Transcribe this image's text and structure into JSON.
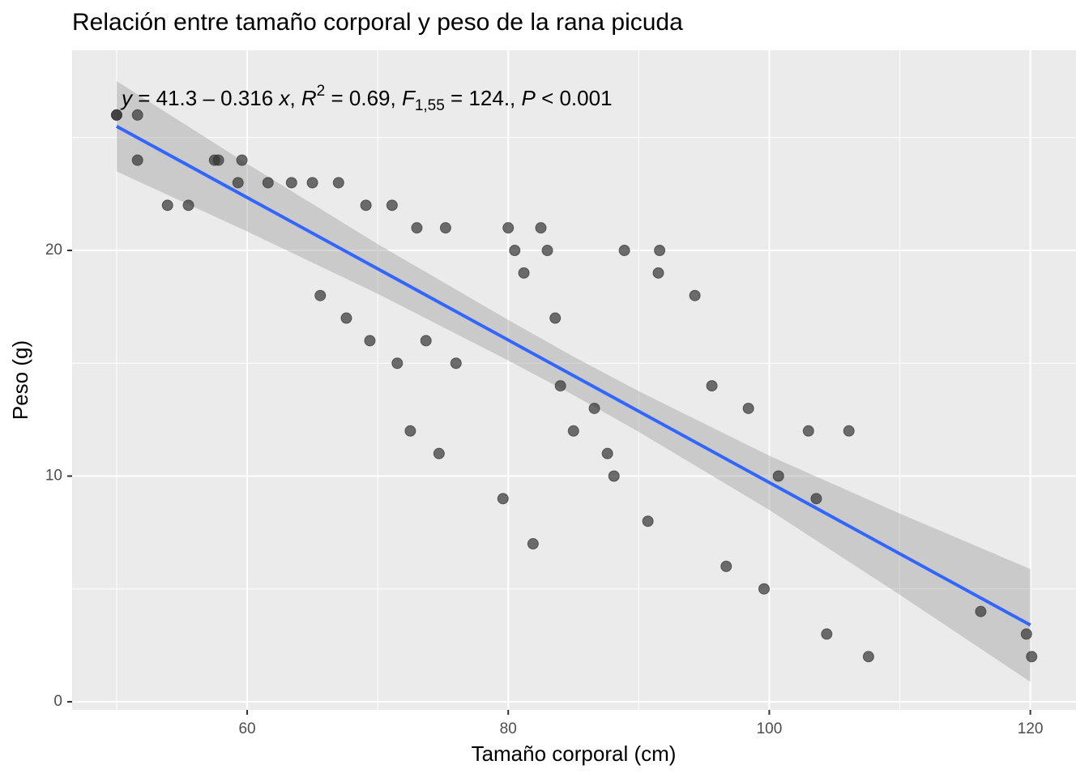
{
  "chart_data": {
    "type": "scatter",
    "title": "Relación entre tamaño corporal y peso de la rana picuda",
    "x_label": "Tamaño corporal (cm)",
    "y_label": "Peso (g)",
    "annotation": [
      "y",
      " = 41.3 – 0.316 ",
      "x",
      ", ",
      "R",
      "2",
      " = 0.69, ",
      "F",
      "1,55",
      " = 124., ",
      "P",
      " < 0.001"
    ],
    "x": [
      50.0,
      50.0,
      51.6,
      51.6,
      53.9,
      55.5,
      57.5,
      57.8,
      59.6,
      59.3,
      61.6,
      63.4,
      65.0,
      67.0,
      65.6,
      67.6,
      69.1,
      69.4,
      71.1,
      71.5,
      72.5,
      73.0,
      73.7,
      74.7,
      75.2,
      76.0,
      79.6,
      80.0,
      80.5,
      81.2,
      81.9,
      82.5,
      83.0,
      83.6,
      84.0,
      85.0,
      86.6,
      87.6,
      88.1,
      88.9,
      90.7,
      91.5,
      91.6,
      94.3,
      95.6,
      96.7,
      98.4,
      99.6,
      100.7,
      103.0,
      103.6,
      104.4,
      106.1,
      107.6,
      116.2,
      119.7,
      120.1
    ],
    "values": [
      26,
      26,
      26,
      24,
      22,
      22,
      24,
      24,
      24,
      23,
      23,
      23,
      23,
      23,
      18,
      17,
      22,
      16,
      22,
      15,
      12,
      21,
      16,
      11,
      21,
      15,
      9,
      21,
      20,
      19,
      7,
      21,
      20,
      17,
      14,
      12,
      13,
      11,
      10,
      20,
      8,
      19,
      20,
      18,
      14,
      6,
      13,
      5,
      10,
      12,
      9,
      3,
      12,
      2,
      4,
      3,
      2
    ],
    "color": "#333333",
    "fit": {
      "x": [
        50,
        120
      ],
      "y": [
        25.5,
        3.4
      ],
      "color": "#3366FF"
    },
    "band": {
      "x": [
        50,
        60,
        70,
        80,
        85,
        90,
        100,
        110,
        120
      ],
      "upper": [
        27.5,
        23.84,
        20.28,
        16.92,
        15.29,
        13.76,
        10.9,
        8.34,
        5.88
      ],
      "lower": [
        23.5,
        20.84,
        18.08,
        15.12,
        13.59,
        11.96,
        8.5,
        4.74,
        0.88
      ],
      "color": "#999999"
    },
    "xlim": [
      46.59,
      123.5
    ],
    "ylim": [
      -0.36,
      28.87
    ],
    "xticks": [
      60,
      80,
      100,
      120
    ],
    "yticks": [
      0,
      10,
      20
    ],
    "grid": true
  }
}
